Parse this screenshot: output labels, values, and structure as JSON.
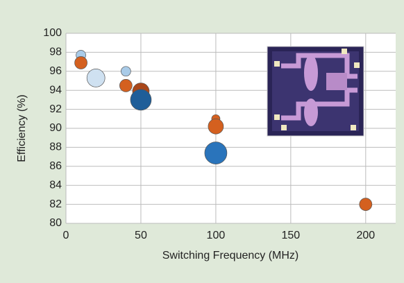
{
  "chart_data": {
    "type": "scatter",
    "x_label": "Switching Frequency (MHz)",
    "y_label": "Efficiency (%)",
    "x": [
      10,
      10,
      20,
      40,
      40,
      50,
      50,
      100,
      100,
      100,
      200
    ],
    "values": [
      97.7,
      96.9,
      95.3,
      96.0,
      94.5,
      93.9,
      93.0,
      91.0,
      90.2,
      87.4,
      82.0
    ],
    "sizes": [
      7,
      9,
      13,
      7,
      9,
      12,
      15,
      6,
      11,
      16,
      9
    ],
    "colors": [
      "#a9cbe8",
      "#d4601f",
      "#cfe1f1",
      "#a9cbe8",
      "#d4601f",
      "#a9471a",
      "#1f5e99",
      "#d4601f",
      "#d4601f",
      "#2a74bb",
      "#d4601f"
    ],
    "xlim": [
      0,
      220
    ],
    "xticks": [
      0,
      50,
      100,
      150,
      200
    ],
    "ylim": [
      80,
      100
    ],
    "yticks": [
      80,
      82,
      84,
      86,
      88,
      90,
      92,
      94,
      96,
      98,
      100
    ],
    "grid": true
  }
}
